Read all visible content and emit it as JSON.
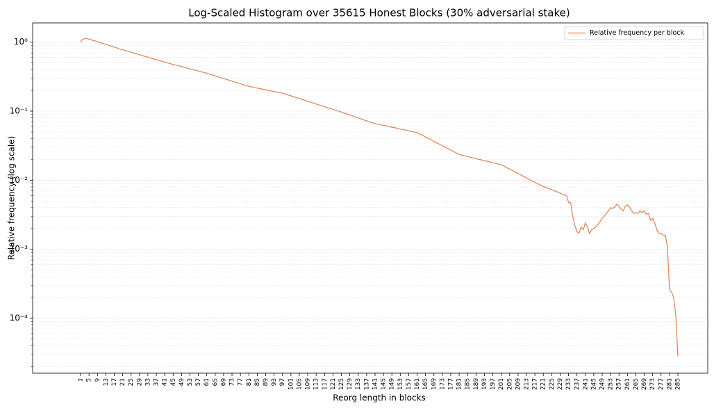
{
  "chart_data": {
    "type": "line",
    "title": "Log-Scaled Histogram over 35615 Honest Blocks (30% adversarial stake)",
    "x_label": "Reorg length in blocks",
    "y_label": "Relative frequency (log scale)",
    "log_y": true,
    "grid": true,
    "legend": "upper right",
    "xlim": [
      -21.8,
      299.2
    ],
    "ylim": [
      1.6e-05,
      1.9
    ],
    "xticks": [
      1,
      5,
      9,
      13,
      17,
      21,
      25,
      29,
      33,
      37,
      41,
      45,
      49,
      53,
      57,
      61,
      65,
      69,
      73,
      77,
      81,
      85,
      89,
      93,
      97,
      101,
      105,
      109,
      113,
      117,
      121,
      125,
      129,
      133,
      137,
      141,
      145,
      149,
      153,
      157,
      161,
      165,
      169,
      173,
      177,
      181,
      185,
      189,
      193,
      197,
      201,
      205,
      209,
      213,
      217,
      221,
      225,
      229,
      233,
      237,
      241,
      245,
      249,
      253,
      257,
      261,
      265,
      269,
      273,
      277,
      281,
      285
    ],
    "yticks": [
      {
        "value": 0.0001,
        "label": "10⁻⁴"
      },
      {
        "value": 0.001,
        "label": "10⁻³"
      },
      {
        "value": 0.01,
        "label": "10⁻²"
      },
      {
        "value": 0.1,
        "label": "10⁻¹"
      },
      {
        "value": 1,
        "label": "10⁰"
      }
    ],
    "x": [
      1,
      2,
      3,
      4,
      5,
      6,
      7,
      8,
      9,
      10,
      11,
      12,
      13,
      14,
      15,
      16,
      17,
      18,
      19,
      20,
      21,
      22,
      23,
      24,
      25,
      26,
      27,
      28,
      29,
      30,
      31,
      32,
      33,
      34,
      35,
      36,
      37,
      38,
      39,
      40,
      41,
      42,
      43,
      44,
      45,
      46,
      47,
      48,
      49,
      50,
      51,
      52,
      53,
      54,
      55,
      56,
      57,
      58,
      59,
      60,
      61,
      62,
      63,
      64,
      65,
      66,
      67,
      68,
      69,
      70,
      71,
      72,
      73,
      74,
      75,
      76,
      77,
      78,
      79,
      80,
      81,
      82,
      83,
      84,
      85,
      86,
      87,
      88,
      89,
      90,
      91,
      92,
      93,
      94,
      95,
      96,
      97,
      98,
      99,
      100,
      101,
      102,
      103,
      104,
      105,
      106,
      107,
      108,
      109,
      110,
      111,
      112,
      113,
      114,
      115,
      116,
      117,
      118,
      119,
      120,
      121,
      122,
      123,
      124,
      125,
      126,
      127,
      128,
      129,
      130,
      131,
      132,
      133,
      134,
      135,
      136,
      137,
      138,
      139,
      140,
      141,
      142,
      143,
      144,
      145,
      146,
      147,
      148,
      149,
      150,
      151,
      152,
      153,
      154,
      155,
      156,
      157,
      158,
      159,
      160,
      161,
      162,
      163,
      164,
      165,
      166,
      167,
      168,
      169,
      170,
      171,
      172,
      173,
      174,
      175,
      176,
      177,
      178,
      179,
      180,
      181,
      182,
      183,
      184,
      185,
      186,
      187,
      188,
      189,
      190,
      191,
      192,
      193,
      194,
      195,
      196,
      197,
      198,
      199,
      200,
      201,
      202,
      203,
      204,
      205,
      206,
      207,
      208,
      209,
      210,
      211,
      212,
      213,
      214,
      215,
      216,
      217,
      218,
      219,
      220,
      221,
      222,
      223,
      224,
      225,
      226,
      227,
      228,
      229,
      230,
      231,
      232,
      233,
      234,
      235,
      236,
      237,
      238,
      239,
      240,
      241,
      242,
      243,
      244,
      245,
      246,
      247,
      248,
      249,
      250,
      251,
      252,
      253,
      254,
      255,
      256,
      257,
      258,
      259,
      260,
      261,
      262,
      263,
      264,
      265,
      266,
      267,
      268,
      269,
      270,
      271,
      272,
      273,
      274,
      275,
      276,
      277,
      278,
      279,
      280,
      281,
      282,
      283,
      284,
      285
    ],
    "series": [
      {
        "name": "Relative frequency per block",
        "color": "#e0804f",
        "values": [
          1.0,
          1.1,
          1.12,
          1.13,
          1.11,
          1.08,
          1.06,
          1.04,
          1.01,
          0.99,
          0.97,
          0.95,
          0.93,
          0.91,
          0.89,
          0.87,
          0.85,
          0.83,
          0.81,
          0.79,
          0.78,
          0.76,
          0.745,
          0.73,
          0.715,
          0.7,
          0.685,
          0.67,
          0.66,
          0.645,
          0.63,
          0.62,
          0.605,
          0.593,
          0.58,
          0.569,
          0.557,
          0.546,
          0.535,
          0.524,
          0.513,
          0.503,
          0.494,
          0.485,
          0.476,
          0.468,
          0.459,
          0.451,
          0.443,
          0.435,
          0.427,
          0.419,
          0.411,
          0.404,
          0.396,
          0.389,
          0.382,
          0.375,
          0.368,
          0.361,
          0.355,
          0.347,
          0.34,
          0.332,
          0.325,
          0.318,
          0.311,
          0.304,
          0.298,
          0.291,
          0.285,
          0.279,
          0.273,
          0.267,
          0.261,
          0.255,
          0.25,
          0.244,
          0.239,
          0.234,
          0.229,
          0.226,
          0.222,
          0.219,
          0.216,
          0.213,
          0.21,
          0.207,
          0.204,
          0.201,
          0.198,
          0.195,
          0.193,
          0.19,
          0.187,
          0.185,
          0.182,
          0.178,
          0.174,
          0.17,
          0.167,
          0.163,
          0.159,
          0.156,
          0.152,
          0.149,
          0.146,
          0.142,
          0.139,
          0.136,
          0.133,
          0.13,
          0.127,
          0.124,
          0.121,
          0.119,
          0.116,
          0.113,
          0.111,
          0.108,
          0.107,
          0.104,
          0.102,
          0.0995,
          0.097,
          0.095,
          0.0925,
          0.0905,
          0.088,
          0.086,
          0.084,
          0.082,
          0.08,
          0.078,
          0.076,
          0.074,
          0.0725,
          0.0705,
          0.069,
          0.0675,
          0.066,
          0.065,
          0.064,
          0.063,
          0.0625,
          0.0615,
          0.0605,
          0.0595,
          0.0585,
          0.058,
          0.057,
          0.056,
          0.055,
          0.0545,
          0.0535,
          0.053,
          0.052,
          0.051,
          0.0505,
          0.0495,
          0.049,
          0.047,
          0.0455,
          0.044,
          0.042,
          0.041,
          0.0395,
          0.038,
          0.0365,
          0.0352,
          0.034,
          0.0328,
          0.0316,
          0.0305,
          0.0294,
          0.0283,
          0.0273,
          0.0263,
          0.0254,
          0.0245,
          0.0236,
          0.0232,
          0.0228,
          0.0224,
          0.022,
          0.0216,
          0.0213,
          0.0209,
          0.0206,
          0.0202,
          0.0199,
          0.0195,
          0.0192,
          0.0189,
          0.0186,
          0.0182,
          0.0179,
          0.0176,
          0.0173,
          0.017,
          0.0168,
          0.0162,
          0.0156,
          0.015,
          0.0145,
          0.014,
          0.0135,
          0.013,
          0.0125,
          0.0121,
          0.0116,
          0.0112,
          0.0108,
          0.0104,
          0.01,
          0.0097,
          0.0093,
          0.009,
          0.0087,
          0.0084,
          0.0081,
          0.0079,
          0.0077,
          0.0075,
          0.0073,
          0.0071,
          0.0069,
          0.0067,
          0.0065,
          0.0063,
          0.0061,
          0.006,
          0.0048,
          0.0047,
          0.003,
          0.0022,
          0.0018,
          0.0017,
          0.0021,
          0.0019,
          0.0024,
          0.0021,
          0.0017,
          0.0019,
          0.002,
          0.0021,
          0.0023,
          0.0025,
          0.0028,
          0.003,
          0.0033,
          0.0036,
          0.004,
          0.0039,
          0.0041,
          0.0045,
          0.0042,
          0.0038,
          0.0036,
          0.0042,
          0.0044,
          0.0041,
          0.0036,
          0.0033,
          0.0034,
          0.0033,
          0.0036,
          0.0034,
          0.0036,
          0.0032,
          0.0033,
          0.0026,
          0.0028,
          0.0024,
          0.0019,
          0.0017,
          0.0017,
          0.0016,
          0.0016,
          0.0011,
          0.00026,
          0.00024,
          0.0002,
          0.00011,
          2.8e-05
        ]
      }
    ]
  }
}
